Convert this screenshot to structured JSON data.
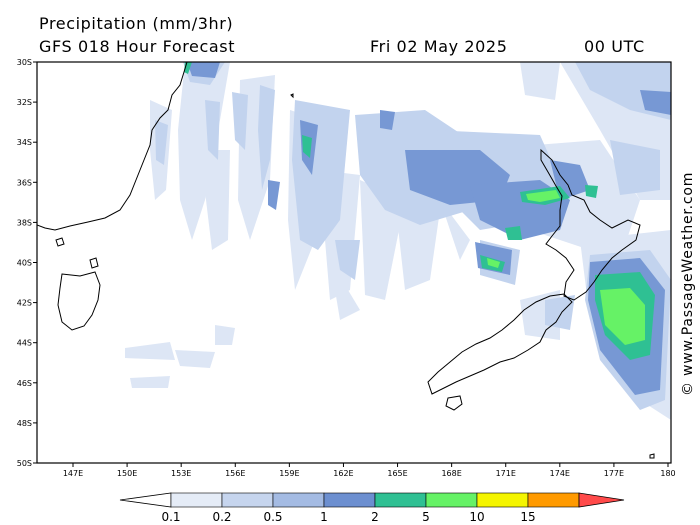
{
  "header": {
    "title": "Precipitation (mm/3hr)",
    "subtitle": "GFS 018 Hour Forecast",
    "date": "Fri 02 May 2025",
    "hour": "00 UTC"
  },
  "watermark": "© www.PassageWeather.com",
  "axes": {
    "lat_ticks": [
      "30S",
      "32S",
      "34S",
      "36S",
      "38S",
      "40S",
      "42S",
      "44S",
      "46S",
      "48S",
      "50S"
    ],
    "lon_ticks": [
      "147E",
      "150E",
      "153E",
      "156E",
      "159E",
      "162E",
      "165E",
      "168E",
      "171E",
      "174E",
      "177E",
      "180"
    ],
    "lat_range": [
      -50,
      -30
    ],
    "lon_range": [
      145,
      180
    ]
  },
  "legend": {
    "labels": [
      "0.1",
      "0.2",
      "0.5",
      "1",
      "2",
      "5",
      "10",
      "15"
    ],
    "colors": [
      "#ffffff",
      "#e5ecf7",
      "#c6d5ee",
      "#a4bbe3",
      "#6c8fd0",
      "#2fc093",
      "#66f266",
      "#f5f500",
      "#ff9a00",
      "#ff4a4a"
    ]
  },
  "map_colors": {
    "land": "#ffffff",
    "sea": "#ffffff",
    "coast": "#000000",
    "frame": "#000000"
  }
}
